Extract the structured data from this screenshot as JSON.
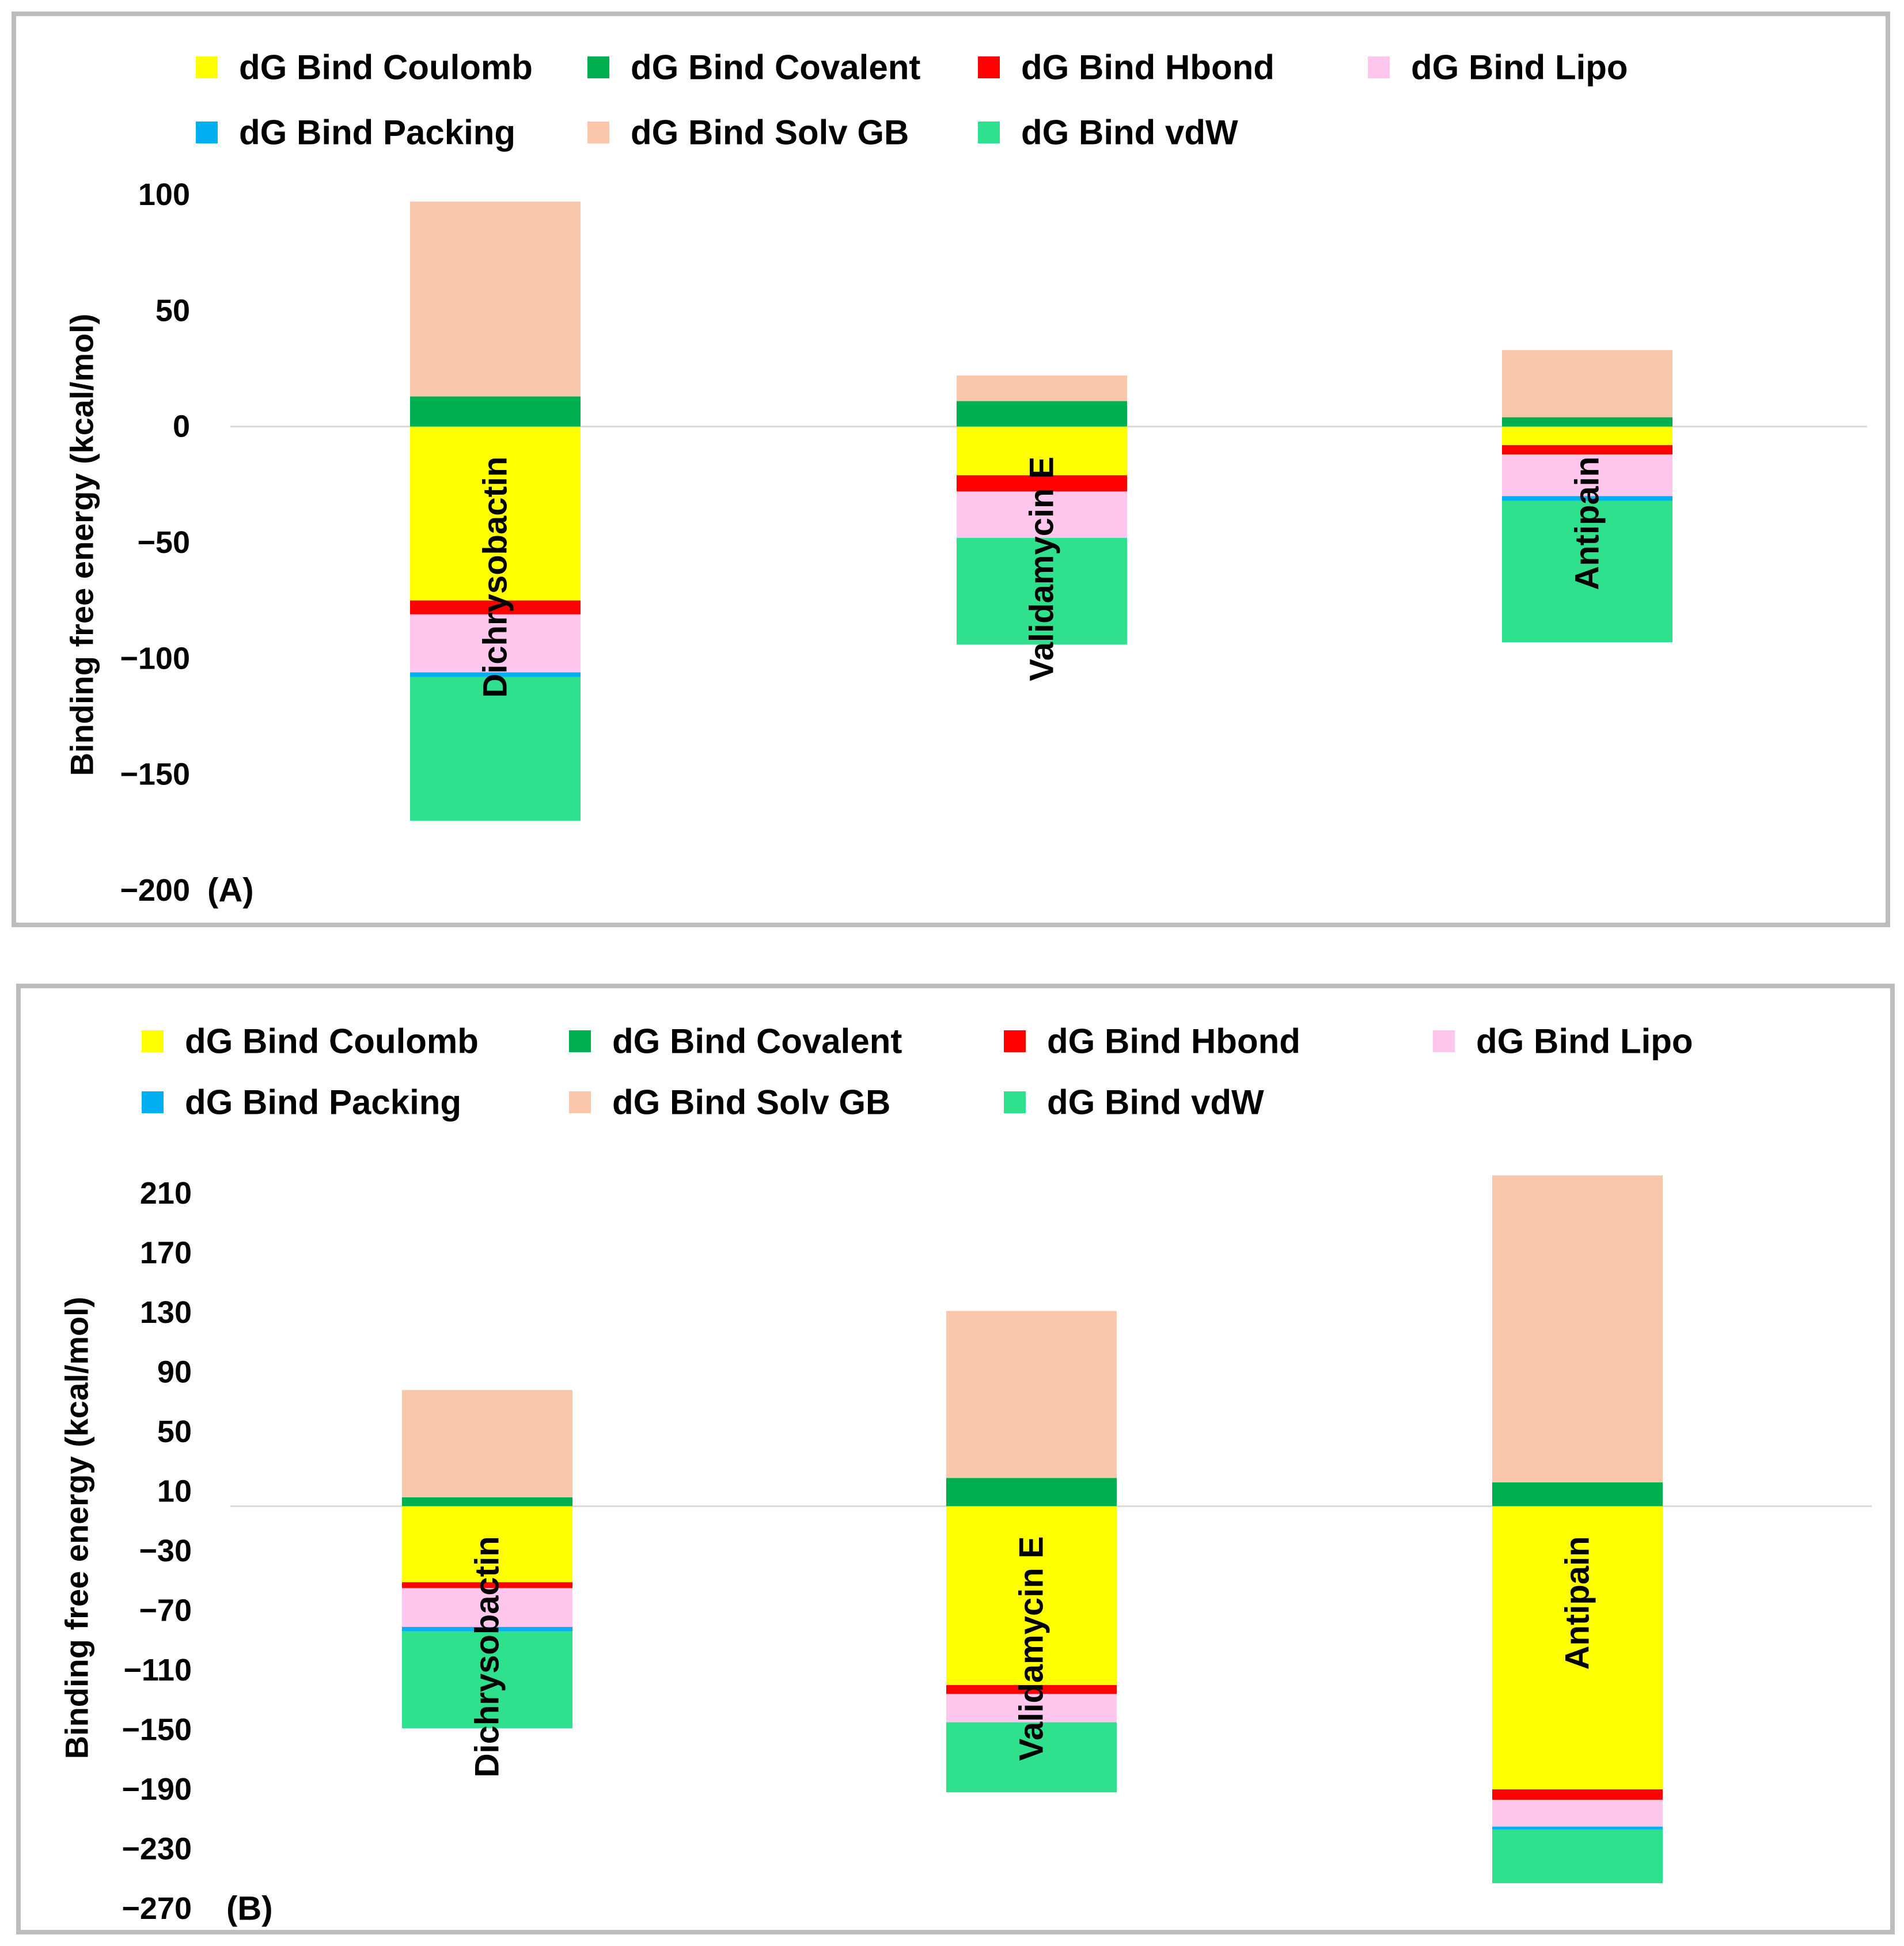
{
  "legend": [
    {
      "label": "dG Bind Coulomb",
      "color": "#FFFF00"
    },
    {
      "label": "dG Bind Covalent",
      "color": "#00B050"
    },
    {
      "label": "dG Bind Hbond",
      "color": "#FF0000"
    },
    {
      "label": "dG Bind Lipo",
      "color": "#FFC7EE"
    },
    {
      "label": "dG Bind Packing",
      "color": "#00B0F0"
    },
    {
      "label": "dG Bind Solv GB",
      "color": "#FBC7AA"
    },
    {
      "label": "dG Bind vdW",
      "color": "#2FE18C"
    }
  ],
  "chart_data": [
    {
      "type": "bar",
      "stacked": true,
      "panel_label": "(A)",
      "ylabel": "Binding free energy (kcal/mol)",
      "ylim": [
        -200,
        100
      ],
      "yticks": [
        "100",
        "50",
        "0",
        "−50",
        "−100",
        "−150",
        "−200"
      ],
      "ytick_values": [
        100,
        50,
        0,
        -50,
        -100,
        -150,
        -200
      ],
      "categories": [
        "Dichrysobactin",
        "Validamycin E",
        "Antipain"
      ],
      "series": [
        {
          "name": "dG Bind Coulomb",
          "values": [
            -75,
            -21,
            -8
          ]
        },
        {
          "name": "dG Bind Covalent",
          "values": [
            13,
            11,
            4
          ]
        },
        {
          "name": "dG Bind Hbond",
          "values": [
            -6,
            -7,
            -4
          ]
        },
        {
          "name": "dG Bind Lipo",
          "values": [
            -25,
            -20,
            -18
          ]
        },
        {
          "name": "dG Bind Packing",
          "values": [
            -2,
            0,
            -2
          ]
        },
        {
          "name": "dG Bind Solv GB",
          "values": [
            84,
            11,
            29
          ]
        },
        {
          "name": "dG Bind vdW",
          "values": [
            -62,
            -46,
            -61
          ]
        }
      ]
    },
    {
      "type": "bar",
      "stacked": true,
      "panel_label": "(B)",
      "ylabel": "Binding free energy (kcal/mol)",
      "ylim": [
        -270,
        210
      ],
      "yticks": [
        "210",
        "170",
        "130",
        "90",
        "50",
        "10",
        "−30",
        "−70",
        "−110",
        "−150",
        "−190",
        "−230",
        "−270"
      ],
      "ytick_values": [
        210,
        170,
        130,
        90,
        50,
        10,
        -30,
        -70,
        -110,
        -150,
        -190,
        -230,
        -270
      ],
      "categories": [
        "Dichrysobactin",
        "Validamycin E",
        "Antipain"
      ],
      "series": [
        {
          "name": "dG Bind Coulomb",
          "values": [
            -51,
            -120,
            -190
          ]
        },
        {
          "name": "dG Bind Covalent",
          "values": [
            6,
            19,
            16
          ]
        },
        {
          "name": "dG Bind Hbond",
          "values": [
            -4,
            -6,
            -7
          ]
        },
        {
          "name": "dG Bind Lipo",
          "values": [
            -26,
            -19,
            -18
          ]
        },
        {
          "name": "dG Bind Packing",
          "values": [
            -3,
            0,
            -2
          ]
        },
        {
          "name": "dG Bind Solv GB",
          "values": [
            72,
            112,
            206
          ]
        },
        {
          "name": "dG Bind vdW",
          "values": [
            -65,
            -47,
            -36
          ]
        }
      ]
    }
  ]
}
